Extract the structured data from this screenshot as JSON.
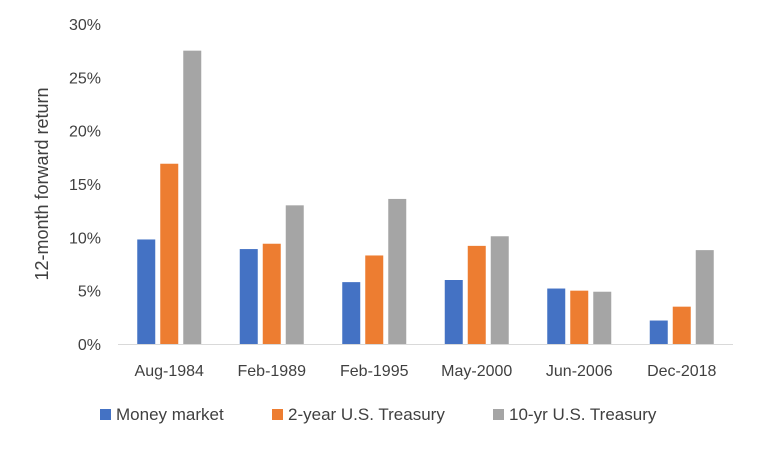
{
  "chart_data": {
    "type": "bar",
    "title": "",
    "xlabel": "",
    "ylabel": "12-month forward return",
    "categories": [
      "Aug-1984",
      "Feb-1989",
      "Feb-1995",
      "May-2000",
      "Jun-2006",
      "Dec-2018"
    ],
    "series": [
      {
        "name": "Money market",
        "color": "#4472C4",
        "values": [
          9.8,
          8.9,
          5.8,
          6.0,
          5.2,
          2.2
        ]
      },
      {
        "name": "2-year U.S. Treasury",
        "color": "#ED7D31",
        "values": [
          16.9,
          9.4,
          8.3,
          9.2,
          5.0,
          3.5
        ]
      },
      {
        "name": "10-yr U.S. Treasury",
        "color": "#A5A5A5",
        "values": [
          27.5,
          13.0,
          13.6,
          10.1,
          4.9,
          8.8
        ]
      }
    ],
    "yticks": [
      "0%",
      "5%",
      "10%",
      "15%",
      "20%",
      "25%",
      "30%"
    ],
    "ytick_values": [
      0,
      5,
      10,
      15,
      20,
      25,
      30
    ],
    "ylim": [
      0,
      30
    ],
    "grid": false,
    "legend": "bottom"
  }
}
